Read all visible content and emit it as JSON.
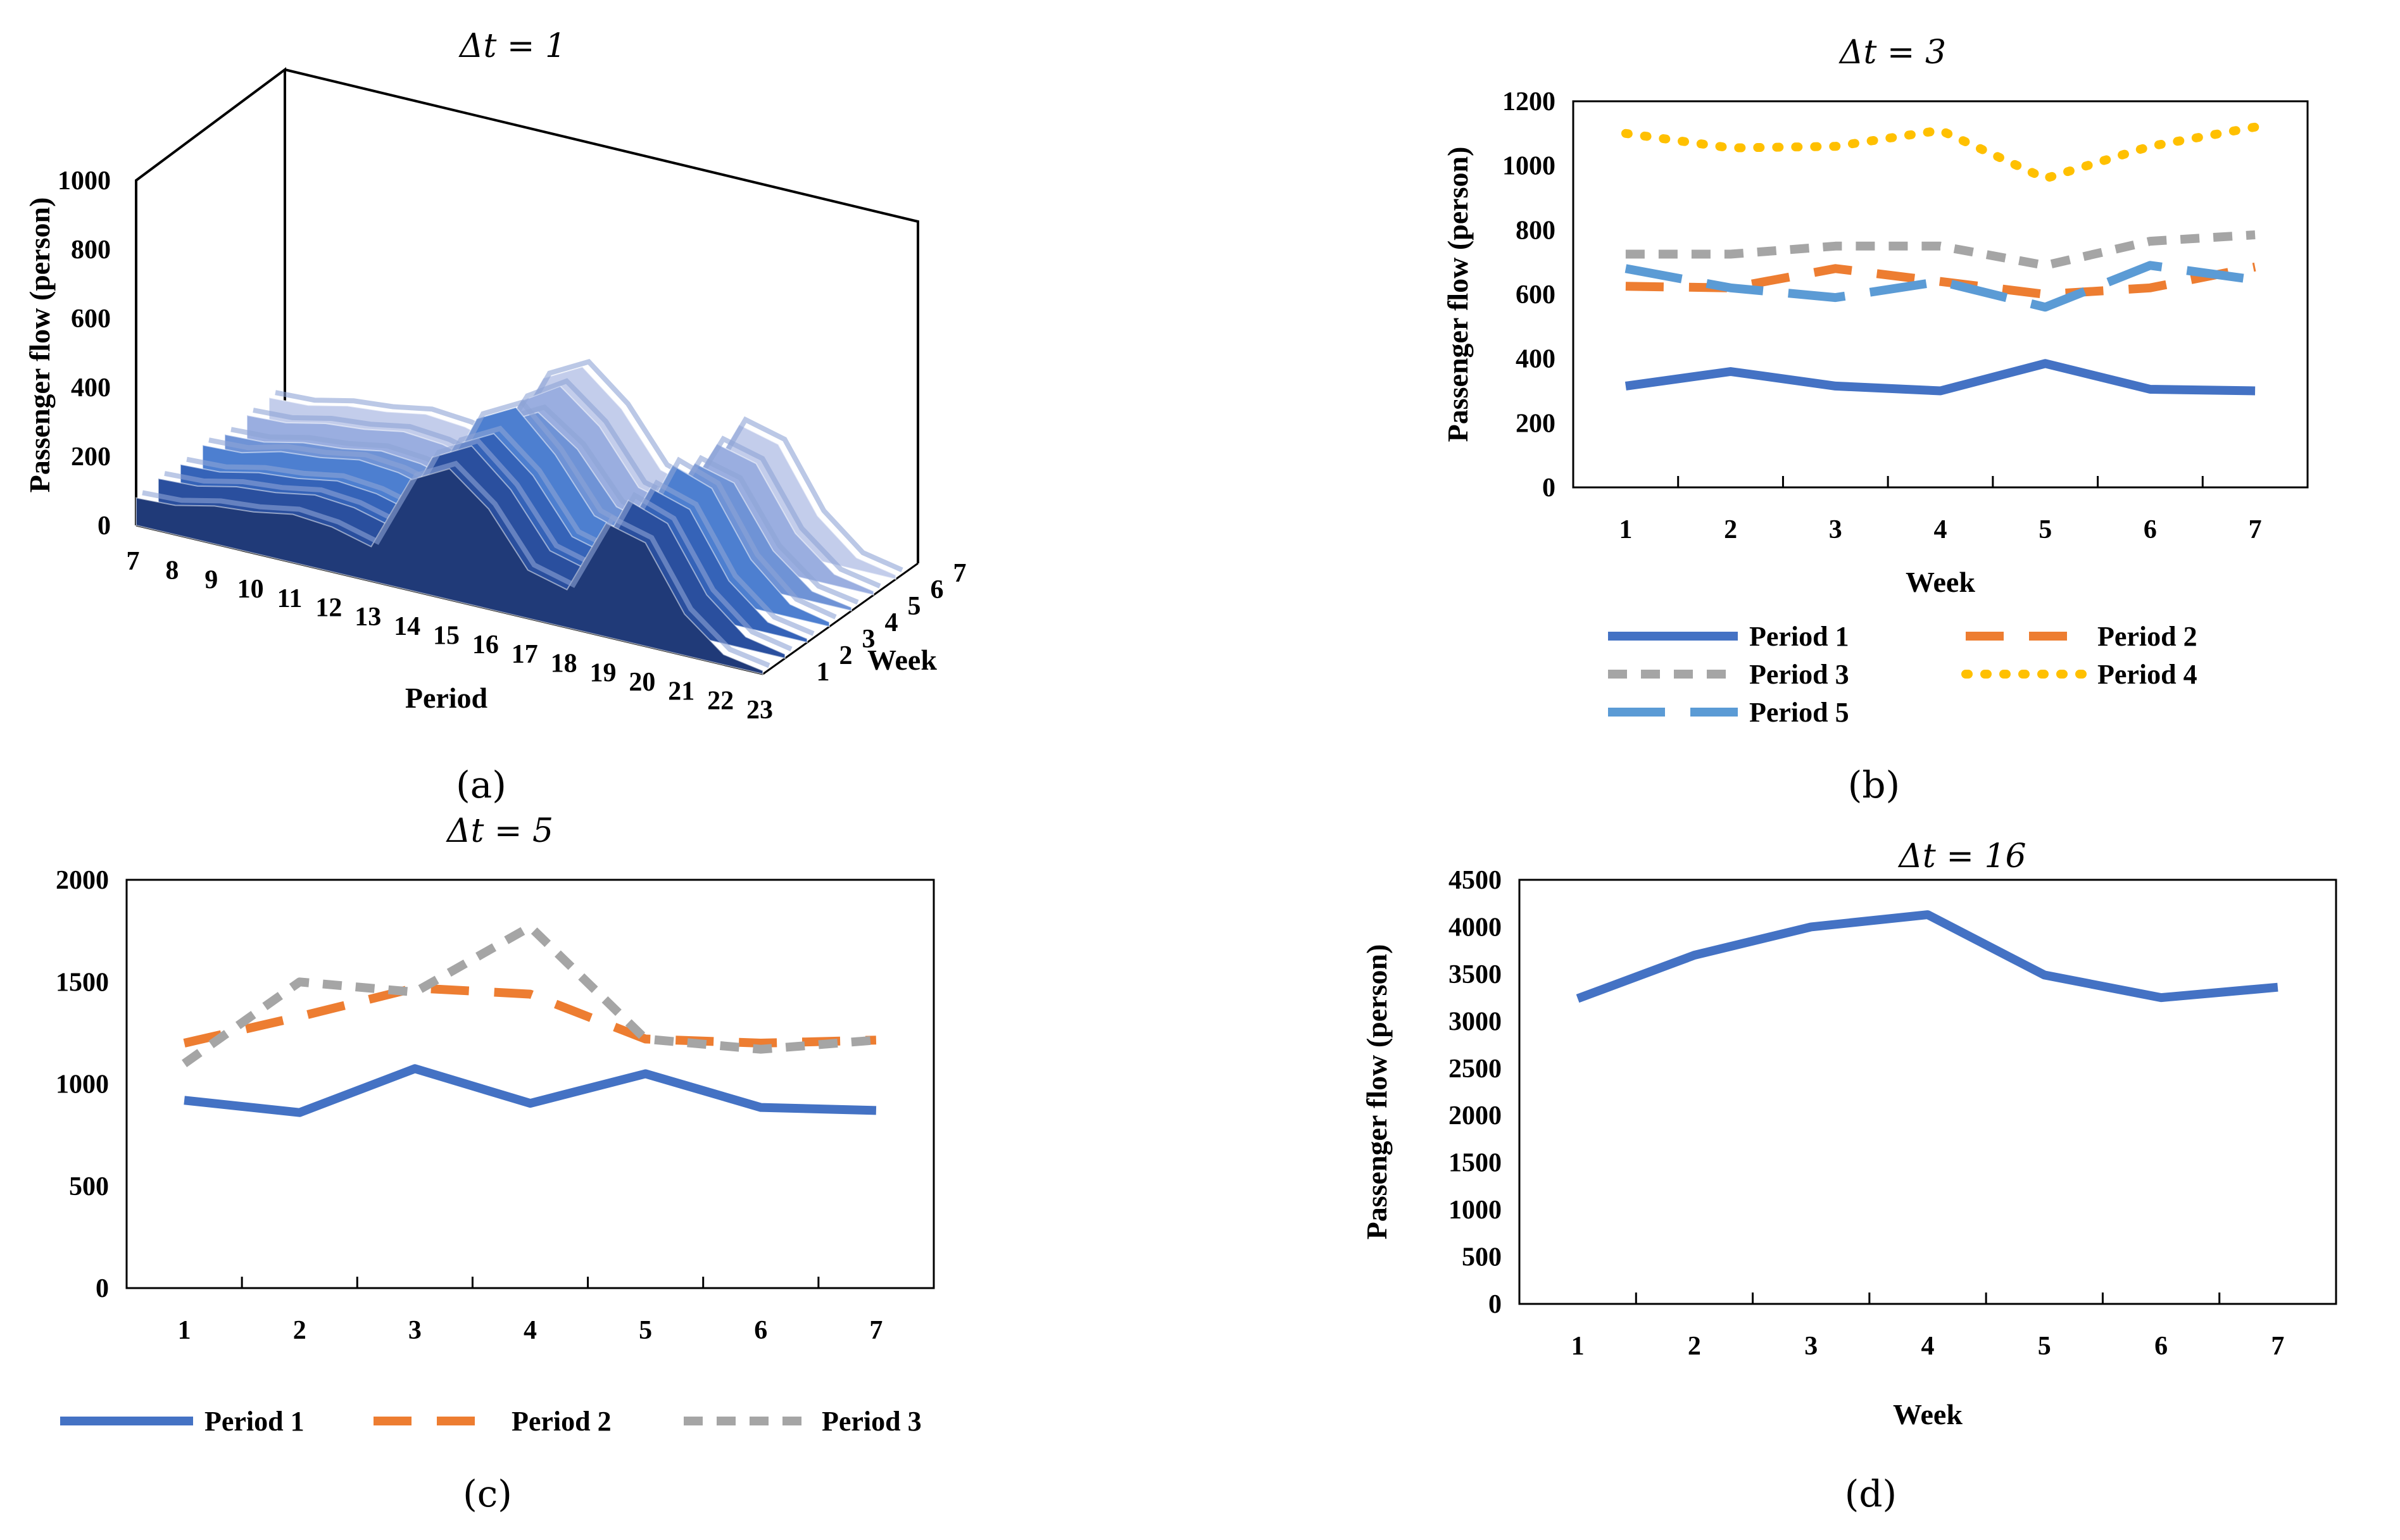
{
  "colors": {
    "period1": "#4472C4",
    "period2": "#ED7D31",
    "period3": "#A5A5A5",
    "period4": "#FFC000",
    "period5": "#5B9BD5",
    "frame": "#000000"
  },
  "chart_data": [
    {
      "id": "a",
      "panel_label": "(a)",
      "type": "area",
      "subtype": "3d-area",
      "title": "Δt = 1",
      "ylabel": "Passenger flow (person)",
      "xlabel": "Period",
      "zlabel": "Week",
      "ylim": [
        0,
        1000
      ],
      "yticks": [
        "0",
        "200",
        "400",
        "600",
        "800",
        "1000"
      ],
      "categories": [
        "7",
        "8",
        "9",
        "10",
        "11",
        "12",
        "13",
        "14",
        "15",
        "16",
        "17",
        "18",
        "19",
        "20",
        "21",
        "22",
        "23"
      ],
      "weeks": [
        "1",
        "2",
        "3",
        "4",
        "5",
        "6",
        "7"
      ],
      "series": [
        {
          "name": "1",
          "values": [
            80,
            85,
            110,
            120,
            140,
            130,
            100,
            320,
            380,
            290,
            140,
            110,
            330,
            300,
            120,
            30,
            10
          ]
        },
        {
          "name": "2",
          "values": [
            90,
            95,
            120,
            130,
            150,
            140,
            110,
            340,
            400,
            300,
            150,
            120,
            350,
            310,
            130,
            35,
            12
          ]
        },
        {
          "name": "3",
          "values": [
            85,
            90,
            115,
            125,
            145,
            135,
            105,
            330,
            390,
            295,
            145,
            115,
            340,
            305,
            125,
            32,
            11
          ]
        },
        {
          "name": "4",
          "values": [
            95,
            100,
            130,
            140,
            160,
            150,
            120,
            360,
            420,
            310,
            160,
            125,
            360,
            320,
            140,
            38,
            13
          ]
        },
        {
          "name": "5",
          "values": [
            80,
            85,
            110,
            120,
            140,
            130,
            100,
            300,
            360,
            280,
            140,
            110,
            320,
            290,
            120,
            30,
            10
          ]
        },
        {
          "name": "6",
          "values": [
            90,
            95,
            120,
            130,
            150,
            140,
            110,
            320,
            390,
            300,
            150,
            120,
            330,
            300,
            125,
            33,
            11
          ]
        },
        {
          "name": "7",
          "values": [
            95,
            100,
            125,
            135,
            155,
            145,
            115,
            340,
            400,
            305,
            155,
            120,
            340,
            310,
            130,
            35,
            12
          ]
        }
      ]
    },
    {
      "id": "b",
      "panel_label": "(b)",
      "type": "line",
      "title": "Δt = 3",
      "xlabel": "Week",
      "ylabel": "Passenger flow (person)",
      "ylim": [
        0,
        1200
      ],
      "yticks": [
        "0",
        "200",
        "400",
        "600",
        "800",
        "1000",
        "1200"
      ],
      "categories": [
        "1",
        "2",
        "3",
        "4",
        "5",
        "6",
        "7"
      ],
      "series": [
        {
          "name": "Period 1",
          "values": [
            315,
            360,
            315,
            300,
            385,
            305,
            300
          ]
        },
        {
          "name": "Period 2",
          "values": [
            625,
            620,
            680,
            640,
            600,
            620,
            685
          ]
        },
        {
          "name": "Period 3",
          "values": [
            725,
            725,
            750,
            750,
            690,
            765,
            785
          ]
        },
        {
          "name": "Period 4",
          "values": [
            1100,
            1055,
            1060,
            1110,
            960,
            1060,
            1120
          ]
        },
        {
          "name": "Period 5",
          "values": [
            680,
            620,
            590,
            640,
            560,
            690,
            645
          ]
        }
      ]
    },
    {
      "id": "c",
      "panel_label": "(c)",
      "type": "line",
      "title": "Δt = 5",
      "xlabel": "",
      "ylabel": "",
      "ylim": [
        0,
        2000
      ],
      "yticks": [
        "0",
        "500",
        "1000",
        "1500",
        "2000"
      ],
      "categories": [
        "1",
        "2",
        "3",
        "4",
        "5",
        "6",
        "7"
      ],
      "series": [
        {
          "name": "Period 1",
          "values": [
            920,
            860,
            1075,
            905,
            1050,
            885,
            870
          ]
        },
        {
          "name": "Period 2",
          "values": [
            1200,
            1330,
            1470,
            1440,
            1220,
            1200,
            1215
          ]
        },
        {
          "name": "Period 3",
          "values": [
            1100,
            1500,
            1450,
            1770,
            1220,
            1170,
            1215
          ]
        }
      ]
    },
    {
      "id": "d",
      "panel_label": "(d)",
      "type": "line",
      "title": "Δt = 16",
      "xlabel": "Week",
      "ylabel": "Passenger flow (person)",
      "ylim": [
        0,
        4500
      ],
      "yticks": [
        "0",
        "500",
        "1000",
        "1500",
        "2000",
        "2500",
        "3000",
        "3500",
        "4000",
        "4500"
      ],
      "categories": [
        "1",
        "2",
        "3",
        "4",
        "5",
        "6",
        "7"
      ],
      "series": [
        {
          "name": "Period 1",
          "values": [
            3240,
            3700,
            4000,
            4130,
            3490,
            3250,
            3360
          ]
        }
      ]
    }
  ]
}
